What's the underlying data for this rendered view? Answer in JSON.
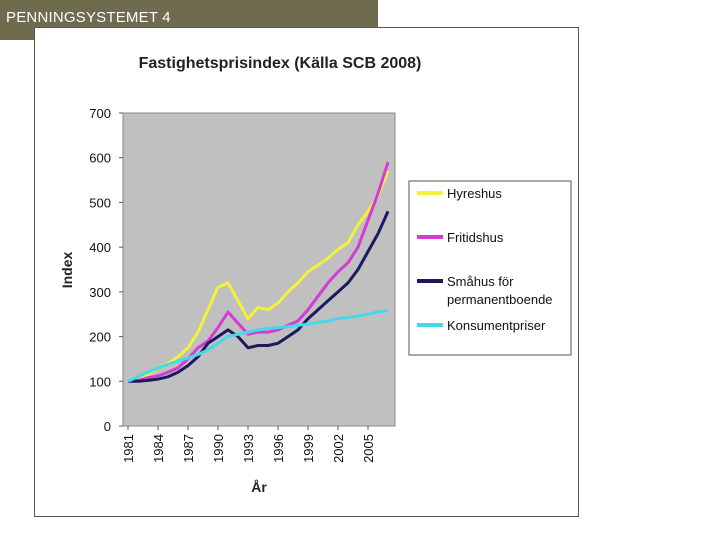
{
  "slide": {
    "label": "PENNINGSYSTEMET 4"
  },
  "chart_data": {
    "type": "line",
    "title": "Fastighetsprisindex (Källa SCB 2008)",
    "xlabel": "År",
    "ylabel": "Index",
    "ylim": [
      0,
      700
    ],
    "yticks": [
      "0",
      "100",
      "200",
      "300",
      "400",
      "500",
      "600",
      "700"
    ],
    "xlim": [
      1981,
      2007
    ],
    "xticks": [
      "1981",
      "1984",
      "1987",
      "1990",
      "1993",
      "1996",
      "1999",
      "2002",
      "2005"
    ],
    "x": [
      1981,
      1982,
      1983,
      1984,
      1985,
      1986,
      1987,
      1988,
      1989,
      1990,
      1991,
      1992,
      1993,
      1994,
      1995,
      1996,
      1997,
      1998,
      1999,
      2000,
      2001,
      2002,
      2003,
      2004,
      2005,
      2006,
      2007
    ],
    "series": [
      {
        "name": "Hyreshus",
        "color": "#f2f23a",
        "values": [
          100,
          105,
          115,
          130,
          140,
          155,
          175,
          210,
          260,
          310,
          320,
          280,
          240,
          265,
          260,
          275,
          300,
          320,
          345,
          360,
          375,
          395,
          410,
          450,
          480,
          515,
          570
        ]
      },
      {
        "name": "Fritidshus",
        "color": "#d43ad4",
        "values": [
          100,
          102,
          108,
          112,
          120,
          130,
          150,
          175,
          190,
          220,
          255,
          230,
          205,
          210,
          210,
          215,
          225,
          235,
          260,
          290,
          320,
          345,
          365,
          400,
          460,
          520,
          590
        ]
      },
      {
        "name": "Småhus för permanentboende",
        "color": "#1a1a5e",
        "values": [
          100,
          100,
          102,
          105,
          110,
          120,
          135,
          155,
          185,
          200,
          215,
          200,
          175,
          180,
          180,
          185,
          200,
          215,
          240,
          260,
          280,
          300,
          320,
          350,
          390,
          430,
          480
        ]
      },
      {
        "name": "Konsumentpriser",
        "color": "#46d9e8",
        "values": [
          100,
          110,
          120,
          130,
          138,
          145,
          152,
          160,
          170,
          185,
          200,
          205,
          210,
          215,
          218,
          220,
          222,
          225,
          228,
          232,
          235,
          240,
          243,
          246,
          250,
          255,
          258
        ]
      }
    ],
    "legend": {
      "placement": "right"
    }
  }
}
